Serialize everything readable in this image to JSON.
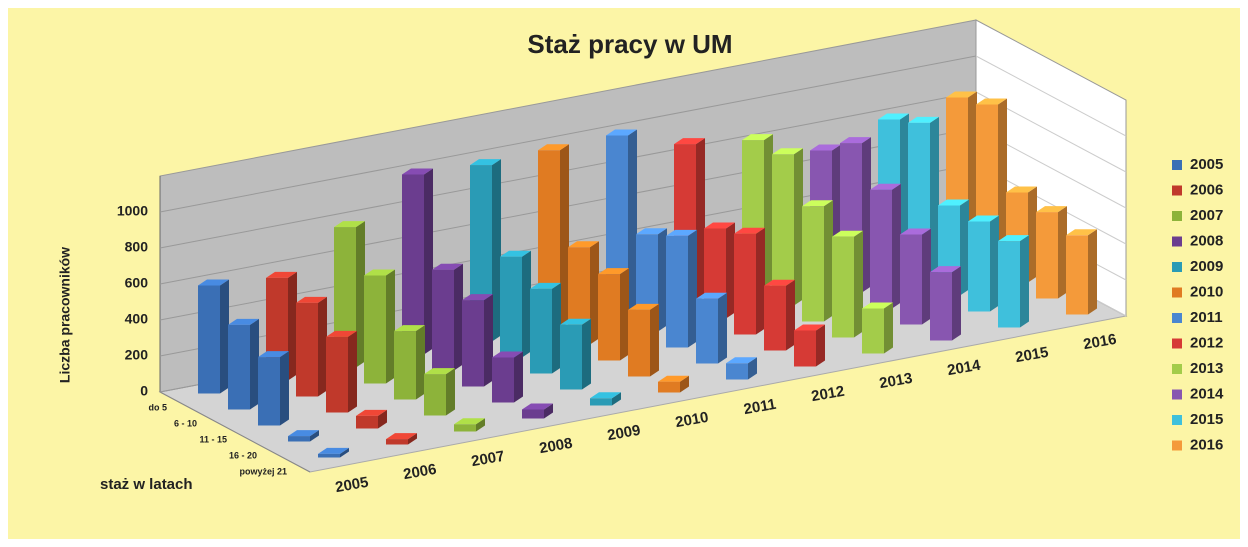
{
  "chart_data": {
    "type": "bar3d",
    "title": "Staż pracy w UM",
    "y_label": "Liczba pracowników",
    "depth_label": "staż w latach",
    "categories": [
      "do 5",
      "6 - 10",
      "11 - 15",
      "16 - 20",
      "powyżej 21"
    ],
    "series": [
      {
        "name": "2005",
        "color": "#3a6fb5",
        "values": [
          600,
          470,
          380,
          30,
          20
        ]
      },
      {
        "name": "2006",
        "color": "#c0392b",
        "values": [
          570,
          520,
          420,
          70,
          30
        ]
      },
      {
        "name": "2007",
        "color": "#8db33a",
        "values": [
          780,
          600,
          380,
          230,
          40
        ]
      },
      {
        "name": "2008",
        "color": "#6b3d8f",
        "values": [
          1000,
          560,
          480,
          250,
          50
        ]
      },
      {
        "name": "2009",
        "color": "#2a9bb5",
        "values": [
          980,
          560,
          470,
          360,
          40
        ]
      },
      {
        "name": "2010",
        "color": "#e07b22",
        "values": [
          990,
          540,
          480,
          370,
          60
        ]
      },
      {
        "name": "2011",
        "color": "#4a86d0",
        "values": [
          1000,
          540,
          620,
          360,
          90
        ]
      },
      {
        "name": "2012",
        "color": "#d63a35",
        "values": [
          880,
          500,
          560,
          360,
          200
        ]
      },
      {
        "name": "2013",
        "color": "#a3cc4a",
        "values": [
          830,
          840,
          640,
          560,
          250
        ]
      },
      {
        "name": "2014",
        "color": "#8856b0",
        "values": [
          700,
          830,
          660,
          500,
          380
        ]
      },
      {
        "name": "2015",
        "color": "#3fc0dc",
        "values": [
          800,
          870,
          500,
          500,
          480
        ]
      },
      {
        "name": "2016",
        "color": "#f49a3a",
        "values": [
          850,
          900,
          500,
          480,
          440
        ]
      }
    ],
    "ylim": [
      0,
      1200
    ],
    "yticks": [
      0,
      200,
      400,
      600,
      800,
      1000
    ],
    "grid": true
  }
}
